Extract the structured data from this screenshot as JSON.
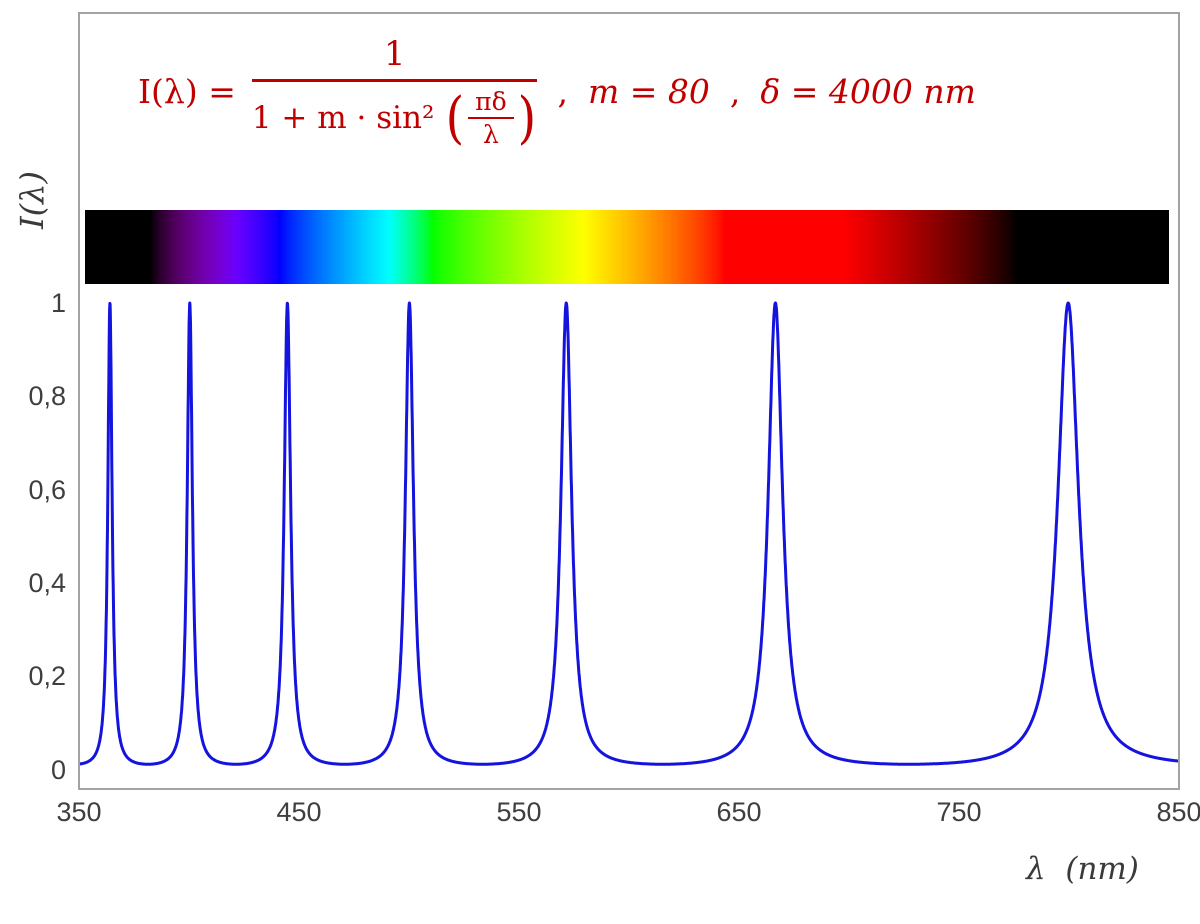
{
  "formula": {
    "lhs": "I(λ) =",
    "numerator": "1",
    "den_prefix": "1 + m · sin² ",
    "open_paren": "(",
    "inner_numerator": "πδ",
    "inner_denominator": "λ",
    "close_paren": ")",
    "separator1": ",",
    "param_m": "m = 80",
    "separator2": ",",
    "param_delta": "δ = 4000 nm",
    "color": "#C00000"
  },
  "axes": {
    "y_label": "I(λ)",
    "x_label": "λ  (nm)",
    "x_ticks": [
      "350",
      "450",
      "550",
      "650",
      "750",
      "850"
    ],
    "y_ticks": [
      "1",
      "0,8",
      "0,6",
      "0,4",
      "0,2",
      "0"
    ]
  },
  "spectrum_bar": {
    "range_nm": [
      350,
      850
    ],
    "visible_nm": [
      380,
      780
    ]
  },
  "chart_data": {
    "type": "line",
    "formula": "I(λ) = 1 / (1 + m·sin²(π·δ/λ))",
    "parameters": {
      "m": 80,
      "delta_nm": 4000
    },
    "xlabel": "λ (nm)",
    "ylabel": "I(λ)",
    "x_range": [
      350,
      850
    ],
    "y_range": [
      0,
      1
    ],
    "x_tick_values": [
      350,
      450,
      550,
      650,
      750,
      850
    ],
    "y_tick_values": [
      0,
      0.2,
      0.4,
      0.6,
      0.8,
      1
    ],
    "peaks_nm": [
      363.6,
      400,
      444.4,
      500,
      571.4,
      666.7,
      800
    ],
    "peak_value": 1,
    "baseline_value": 0.0123,
    "line_color": "#1414DE",
    "line_width": 3,
    "sample_step_nm": 0.1,
    "grid": false,
    "legend": false
  }
}
